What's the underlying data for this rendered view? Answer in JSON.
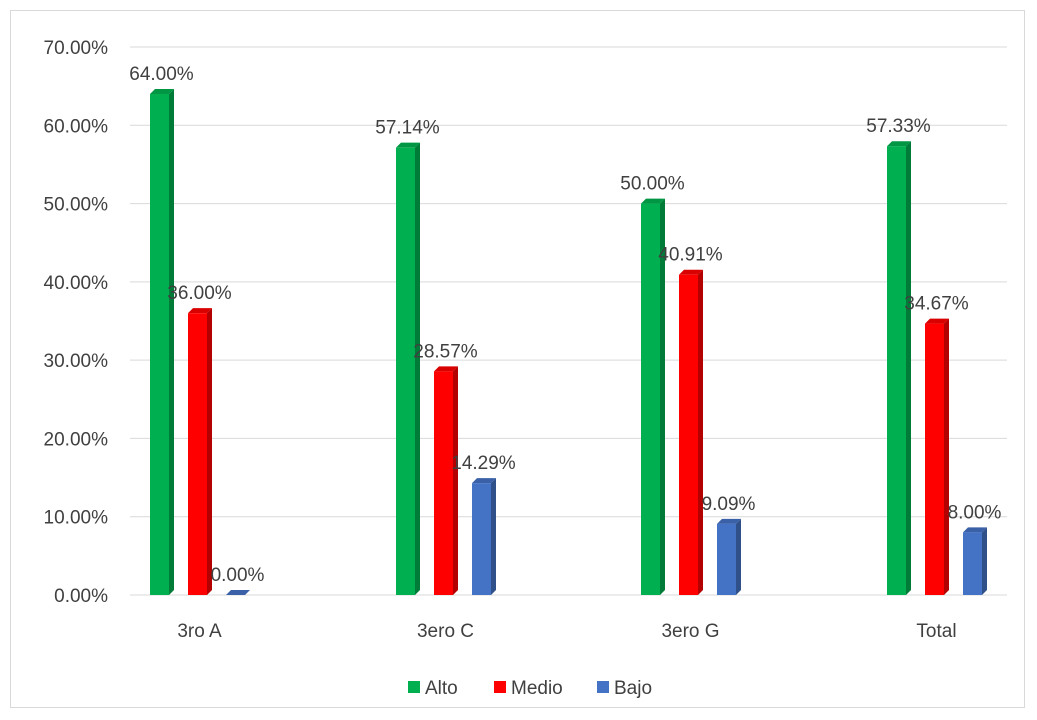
{
  "chart_data": {
    "type": "bar",
    "title": "",
    "xlabel": "",
    "ylabel": "",
    "categories": [
      "3ro A",
      "3ero C",
      "3ero G",
      "Total"
    ],
    "series": [
      {
        "name": "Alto",
        "color": "#00b050",
        "values": [
          64.0,
          57.14,
          50.0,
          57.33
        ],
        "labels": [
          "64.00%",
          "57.14%",
          "50.00%",
          "57.33%"
        ]
      },
      {
        "name": "Medio",
        "color": "#ff0000",
        "values": [
          36.0,
          28.57,
          40.91,
          34.67
        ],
        "labels": [
          "36.00%",
          "28.57%",
          "40.91%",
          "34.67%"
        ]
      },
      {
        "name": "Bajo",
        "color": "#4472c4",
        "values": [
          0.0,
          14.29,
          9.09,
          8.0
        ],
        "labels": [
          "0.00%",
          "14.29%",
          "9.09%",
          "8.00%"
        ]
      }
    ],
    "ylim": [
      0,
      70
    ],
    "yticks": [
      0,
      10,
      20,
      30,
      40,
      50,
      60,
      70
    ],
    "ytick_labels": [
      "0.00%",
      "10.00%",
      "20.00%",
      "30.00%",
      "40.00%",
      "50.00%",
      "60.00%",
      "70.00%"
    ],
    "grid": true,
    "legend_position": "bottom",
    "style": "3d-clustered-column"
  }
}
